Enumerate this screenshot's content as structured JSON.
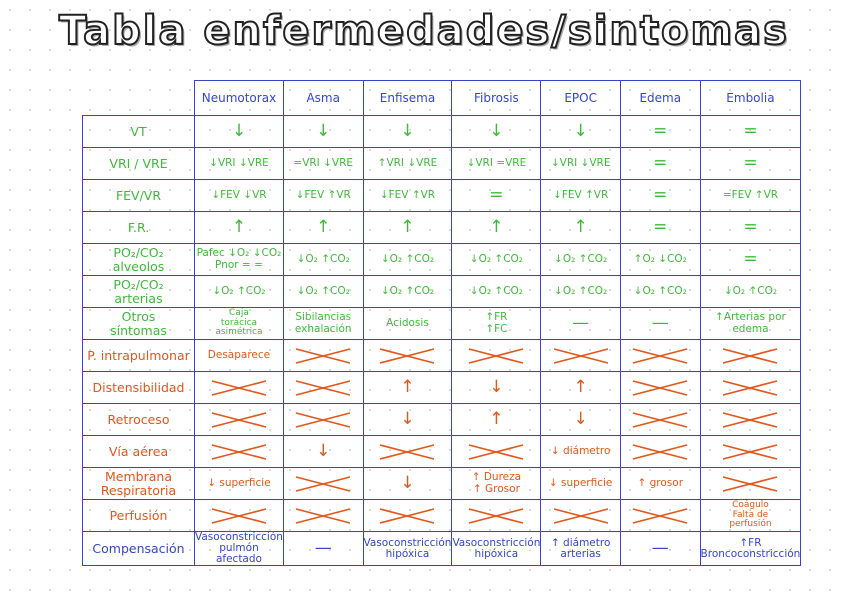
{
  "header": {
    "title": "Tabla enfermedades/sintomas"
  },
  "table": {
    "columns": [
      "Neumotorax",
      "Asma",
      "Enfisema",
      "Fibrosis",
      "EPOC",
      "Edema",
      "Embolia"
    ],
    "rows": [
      {
        "label": "VT",
        "group": "green",
        "cells": [
          "↓",
          "↓",
          "↓",
          "↓",
          "↓",
          "=",
          "="
        ]
      },
      {
        "label": "VRI / VRE",
        "group": "green",
        "cells": [
          "↓VRI ↓VRE",
          "=VRI ↓VRE",
          "↑VRI ↓VRE",
          "↓VRI =VRE",
          "↓VRI ↓VRE",
          "=",
          "="
        ]
      },
      {
        "label": "FEV/VR",
        "group": "green",
        "cells": [
          "↓FEV ↓VR",
          "↓FEV ↑VR",
          "↓FEV ↑VR",
          "=",
          "↓FEV ↑VR",
          "=",
          "=FEV ↑VR"
        ]
      },
      {
        "label": "F.R.",
        "group": "green",
        "cells": [
          "↑",
          "↑",
          "↑",
          "↑",
          "↑",
          "=",
          "="
        ]
      },
      {
        "label": "PO₂/CO₂\nalveolos",
        "group": "green",
        "cells": [
          "Pafec ↓O₂ ↓CO₂\nPnor = =",
          "↓O₂ ↑CO₂",
          "↓O₂ ↑CO₂",
          "↓O₂ ↑CO₂",
          "↓O₂ ↑CO₂",
          "↑O₂ ↓CO₂",
          "="
        ]
      },
      {
        "label": "PO₂/CO₂\narterias",
        "group": "green",
        "cells": [
          "↓O₂ ↑CO₂",
          "↓O₂ ↑CO₂",
          "↓O₂ ↑CO₂",
          "↓O₂ ↑CO₂",
          "↓O₂ ↑CO₂",
          "↓O₂ ↑CO₂",
          "↓O₂ ↑CO₂"
        ]
      },
      {
        "label": "Otros\nsíntomas",
        "group": "green",
        "cells": [
          "Caja\ntorácica\nasimétrica",
          "Sibilancias\nexhalación",
          "Acidosis",
          "↑FR\n↑FC",
          "—",
          "—",
          "↑Arterias por\nedema"
        ]
      },
      {
        "label": "P. intrapulmonar",
        "group": "orange",
        "cells": [
          "Desaparece",
          null,
          null,
          null,
          null,
          null,
          null
        ]
      },
      {
        "label": "Distensibilidad",
        "group": "orange",
        "cells": [
          null,
          null,
          "↑",
          "↓",
          "↑",
          null,
          null
        ]
      },
      {
        "label": "Retroceso",
        "group": "orange",
        "cells": [
          null,
          null,
          "↓",
          "↑",
          "↓",
          null,
          null
        ]
      },
      {
        "label": "Vía aérea",
        "group": "orange",
        "cells": [
          null,
          "↓",
          null,
          null,
          "↓ diámetro",
          null,
          null
        ]
      },
      {
        "label": "Membrana\nRespiratoria",
        "group": "orange",
        "cells": [
          "↓ superficie",
          null,
          "↓",
          "↑ Dureza\n↑ Grosor",
          "↓ superficie",
          "↑ grosor",
          null
        ]
      },
      {
        "label": "Perfusión",
        "group": "orange",
        "cells": [
          null,
          null,
          null,
          null,
          null,
          null,
          "Coágulo\nFalta de\nperfusión"
        ]
      },
      {
        "label": "Compensación",
        "group": "blue",
        "cells": [
          "Vasoconstricción\npulmón afectado",
          "—",
          "Vasoconstricción\nhipóxica",
          "Vasoconstricción\nhipóxica",
          "↑ diámetro\narterias",
          "—",
          "↑FR\nBroncoconstricción"
        ]
      }
    ]
  }
}
